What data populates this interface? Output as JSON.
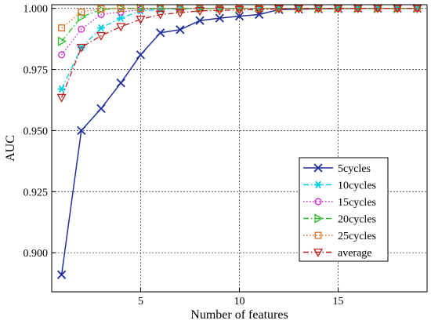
{
  "chart_data": {
    "type": "line",
    "xlabel": "Number of features",
    "ylabel": "AUC",
    "xlim": [
      0.5,
      19.5
    ],
    "ylim": [
      0.884,
      1.0015
    ],
    "x_ticks": [
      5,
      10,
      15
    ],
    "y_ticks": [
      0.9,
      0.925,
      0.95,
      0.975,
      1.0
    ],
    "y_tick_labels": [
      "0.900",
      "0.925",
      "0.950",
      "0.975",
      "1.000"
    ],
    "grid": true,
    "legend_position": "bottom-right",
    "x": [
      1,
      2,
      3,
      4,
      5,
      6,
      7,
      8,
      9,
      10,
      11,
      12,
      13,
      14,
      15,
      16,
      17,
      18,
      19
    ],
    "series": [
      {
        "name": "5cycles",
        "color": "#1f2f9a",
        "marker": "x",
        "dash": "solid",
        "values": [
          0.891,
          0.95,
          0.959,
          0.9695,
          0.981,
          0.99,
          0.9913,
          0.995,
          0.996,
          0.9968,
          0.9975,
          0.9995,
          0.9997,
          0.9998,
          0.9999,
          1.0,
          1.0,
          1.0,
          1.0
        ]
      },
      {
        "name": "10cycles",
        "color": "#00d0e0",
        "marker": "asterisk",
        "dash": "dashdot",
        "values": [
          0.967,
          0.984,
          0.992,
          0.996,
          0.999,
          0.9995,
          0.9998,
          1.0,
          1.0,
          1.0,
          1.0,
          1.0,
          1.0,
          1.0,
          1.0,
          1.0,
          1.0,
          1.0,
          1.0
        ]
      },
      {
        "name": "15cycles",
        "color": "#d020d0",
        "marker": "circle",
        "dash": "dot",
        "values": [
          0.981,
          0.9915,
          0.9975,
          0.9985,
          0.9995,
          1.0,
          1.0,
          1.0,
          1.0,
          1.0,
          1.0,
          1.0,
          1.0,
          1.0,
          1.0,
          1.0,
          1.0,
          1.0,
          1.0
        ]
      },
      {
        "name": "20cycles",
        "color": "#22c022",
        "marker": "triangle-right",
        "dash": "dashdot",
        "values": [
          0.9865,
          0.9965,
          0.9995,
          1.0,
          1.0,
          1.0,
          1.0,
          1.0,
          1.0,
          1.0,
          1.0,
          1.0,
          1.0,
          1.0,
          1.0,
          1.0,
          1.0,
          1.0,
          1.0
        ]
      },
      {
        "name": "25cycles",
        "color": "#e06a20",
        "marker": "square",
        "dash": "dot",
        "values": [
          0.992,
          0.9985,
          0.9998,
          1.0,
          1.0,
          1.0,
          1.0,
          1.0,
          1.0,
          1.0,
          1.0,
          1.0,
          1.0,
          1.0,
          1.0,
          1.0,
          1.0,
          1.0,
          1.0
        ]
      },
      {
        "name": "average",
        "color": "#c02020",
        "marker": "triangle-down",
        "dash": "dashdot",
        "values": [
          0.9635,
          0.984,
          0.9888,
          0.9925,
          0.9955,
          0.9975,
          0.9982,
          0.999,
          0.9992,
          0.9994,
          0.9995,
          0.9998,
          0.9999,
          1.0,
          1.0,
          1.0,
          1.0,
          1.0,
          1.0
        ]
      }
    ]
  }
}
